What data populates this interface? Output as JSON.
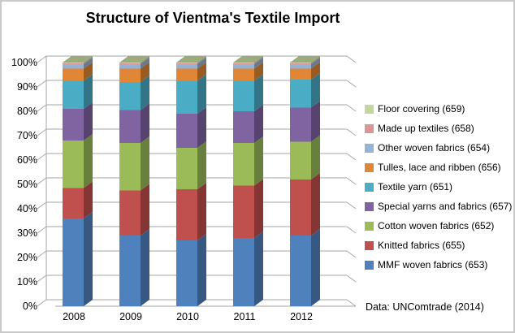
{
  "title": "Structure of Vientma's Textile Import",
  "source_note": "Data: UNComtrade (2014)",
  "chart_data": {
    "type": "bar",
    "subtype": "stacked-100-percent-3d-column",
    "title": "Structure of Vientma's Textile Import",
    "categories": [
      "2008",
      "2009",
      "2010",
      "2011",
      "2012"
    ],
    "series": [
      {
        "name": "MMF woven fabrics (653)",
        "color": "#4F81BD",
        "values": [
          36.0,
          29.0,
          27.0,
          28.0,
          29.0
        ]
      },
      {
        "name": "Knitted fabrics (655)",
        "color": "#C0504D",
        "values": [
          12.5,
          18.5,
          21.0,
          21.5,
          23.0
        ]
      },
      {
        "name": "Cotton woven fabrics (652)",
        "color": "#9BBB59",
        "values": [
          19.5,
          19.5,
          17.0,
          17.5,
          15.5
        ]
      },
      {
        "name": "Special yarns and fabrics (657)",
        "color": "#8064A2",
        "values": [
          13.0,
          13.5,
          14.0,
          13.0,
          14.0
        ]
      },
      {
        "name": "Textile yarn (651)",
        "color": "#4BACC6",
        "values": [
          11.5,
          11.5,
          13.5,
          12.5,
          11.5
        ]
      },
      {
        "name": "Tulles, lace and ribben (656)",
        "color": "#E08634",
        "values": [
          5.0,
          5.5,
          5.0,
          5.0,
          4.5
        ]
      },
      {
        "name": "Other woven fabrics (654)",
        "color": "#95B3D7",
        "values": [
          1.8,
          1.8,
          1.8,
          1.8,
          1.8
        ]
      },
      {
        "name": "Made up textiles (658)",
        "color": "#D99694",
        "values": [
          0.3,
          0.3,
          0.3,
          0.3,
          0.3
        ]
      },
      {
        "name": "Floor covering (659)",
        "color": "#C3D69B",
        "values": [
          0.4,
          0.4,
          0.4,
          0.4,
          0.4
        ]
      }
    ],
    "y_ticks": [
      "0%",
      "10%",
      "20%",
      "30%",
      "40%",
      "50%",
      "60%",
      "70%",
      "80%",
      "90%",
      "100%"
    ],
    "ylim": [
      0,
      100
    ],
    "grid": true,
    "legend_position": "right",
    "legend_order_top_to_bottom": [
      "Floor covering (659)",
      "Made up textiles (658)",
      "Other woven fabrics (654)",
      "Tulles, lace and ribben (656)",
      "Textile yarn (651)",
      "Special yarns and fabrics (657)",
      "Cotton woven fabrics (652)",
      "Knitted fabrics (655)",
      "MMF woven fabrics (653)"
    ]
  }
}
